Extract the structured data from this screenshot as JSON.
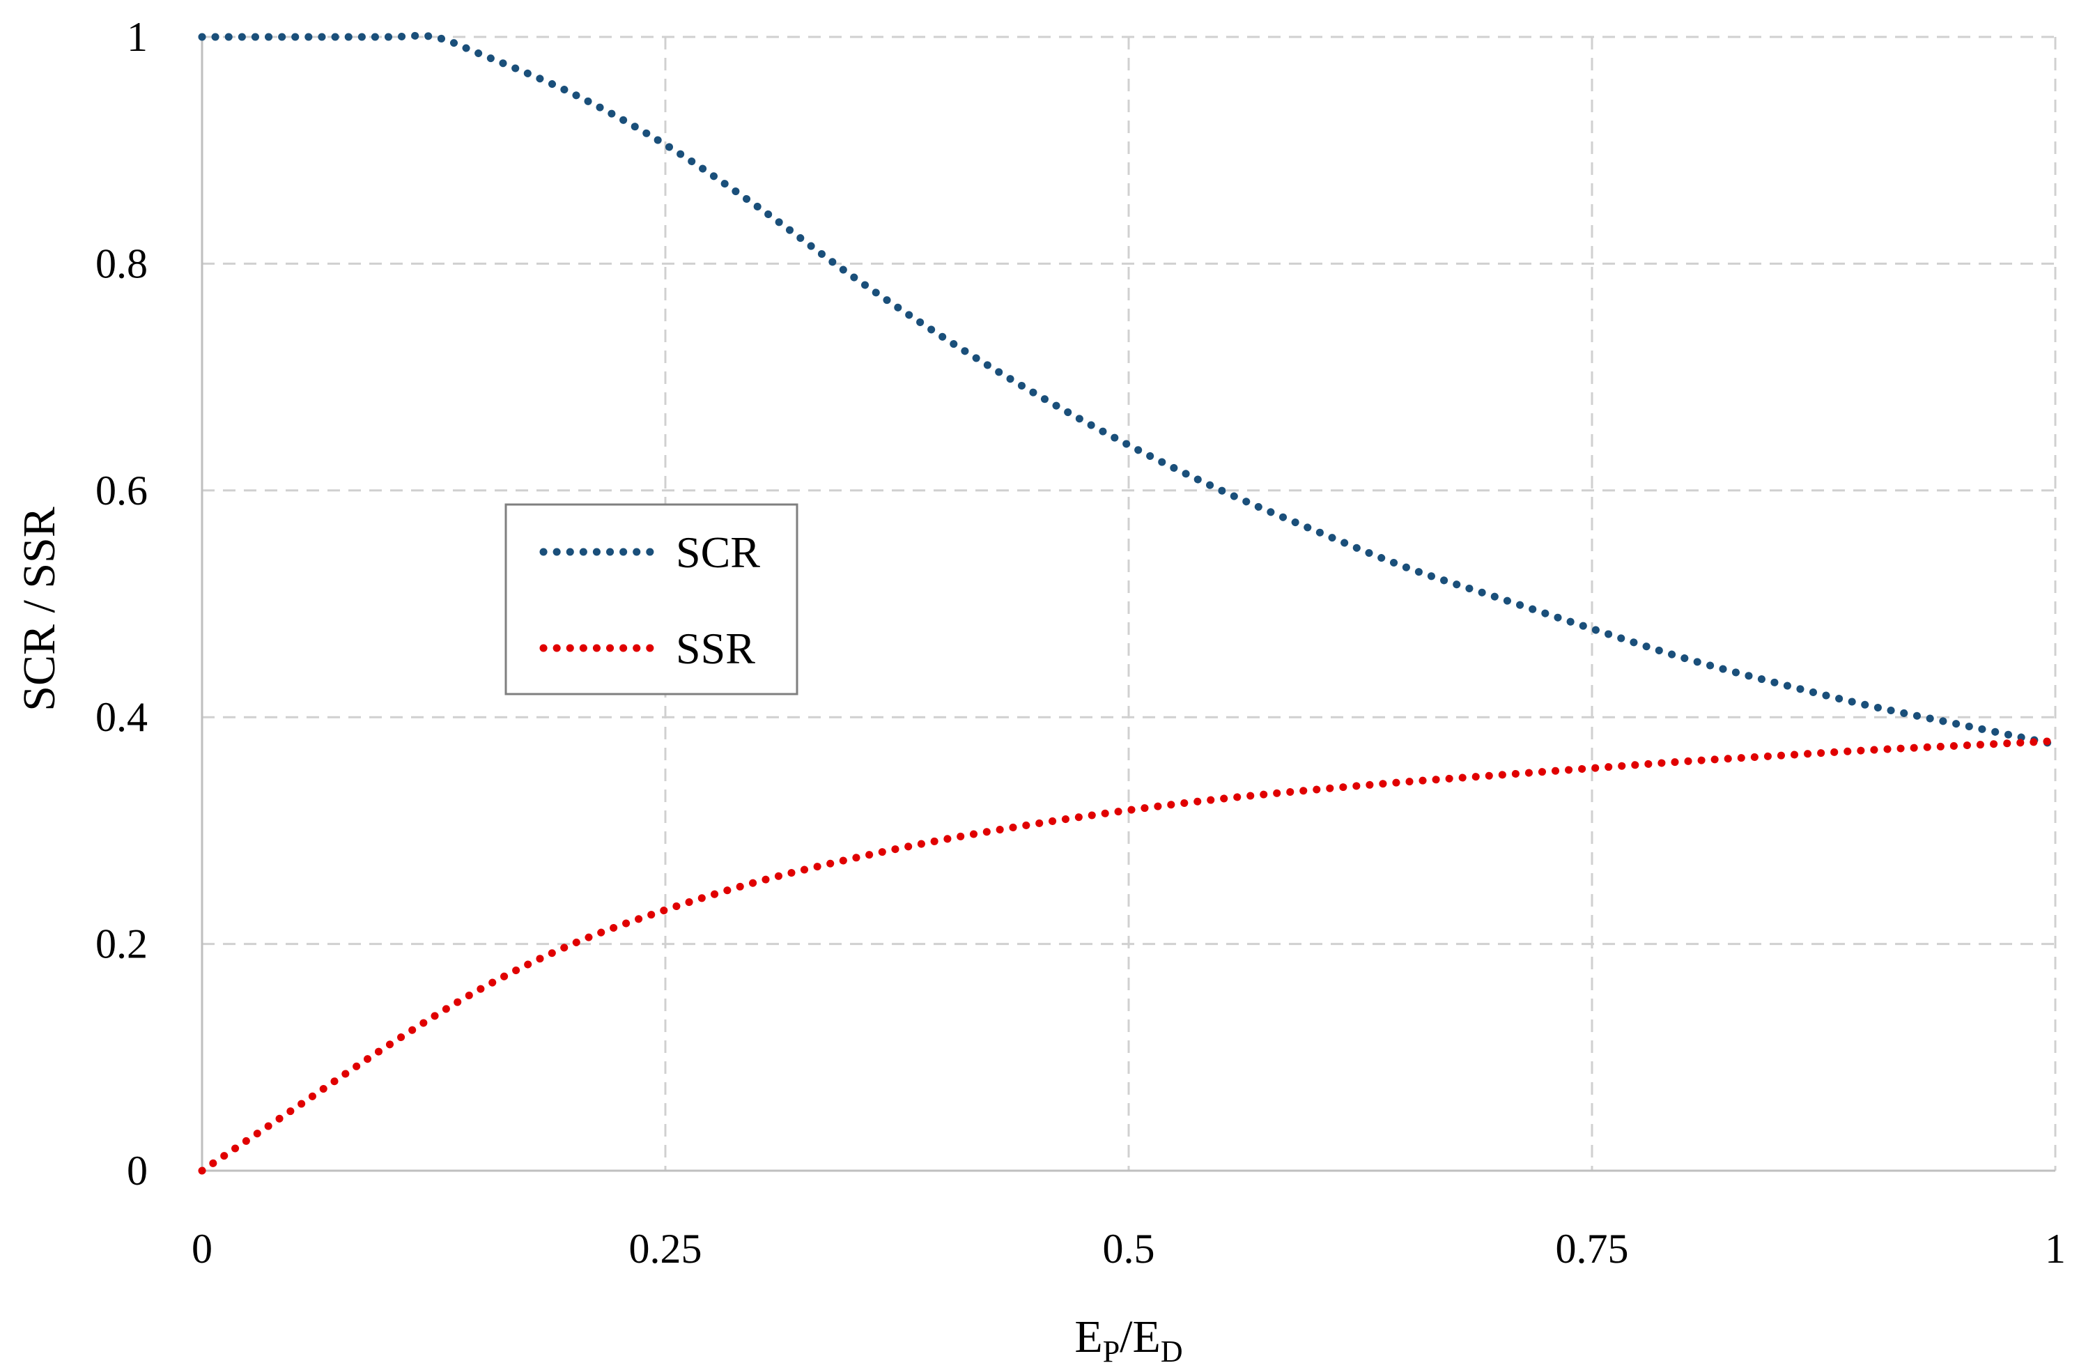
{
  "chart_data": {
    "type": "line",
    "title": "",
    "xlabel": "E_P/E_D",
    "xlabel_parts": {
      "base1": "E",
      "sub1": "P",
      "sep": "/",
      "base2": "E",
      "sub2": "D"
    },
    "ylabel": "SCR / SSR",
    "xlim": [
      0,
      1
    ],
    "ylim": [
      0,
      1
    ],
    "xticks": [
      0,
      0.25,
      0.5,
      0.75,
      1
    ],
    "xtick_labels": [
      "0",
      "0.25",
      "0.5",
      "0.75",
      "1"
    ],
    "yticks": [
      0,
      0.2,
      0.4,
      0.6,
      0.8,
      1
    ],
    "ytick_labels": [
      "0",
      "0.2",
      "0.4",
      "0.6",
      "0.8",
      "1"
    ],
    "grid": true,
    "legend_position": "center-left",
    "series": [
      {
        "name": "SCR",
        "color": "#1a4f7a",
        "style": "dotted",
        "x": [
          0,
          0.05,
          0.1,
          0.125,
          0.15,
          0.2,
          0.25,
          0.3,
          0.35,
          0.4,
          0.45,
          0.5,
          0.55,
          0.6,
          0.65,
          0.7,
          0.75,
          0.8,
          0.85,
          0.9,
          0.95,
          1
        ],
        "values": [
          1.0,
          1.0,
          1.0,
          1.0,
          0.985,
          0.95,
          0.905,
          0.85,
          0.79,
          0.735,
          0.685,
          0.64,
          0.6,
          0.565,
          0.532,
          0.505,
          0.478,
          0.452,
          0.43,
          0.41,
          0.393,
          0.376
        ]
      },
      {
        "name": "SSR",
        "color": "#e00000",
        "style": "dotted",
        "x": [
          0,
          0.05,
          0.1,
          0.15,
          0.2,
          0.25,
          0.3,
          0.35,
          0.4,
          0.45,
          0.5,
          0.55,
          0.6,
          0.65,
          0.7,
          0.75,
          0.8,
          0.85,
          0.9,
          0.95,
          1
        ],
        "values": [
          0.0,
          0.055,
          0.11,
          0.16,
          0.2,
          0.23,
          0.255,
          0.275,
          0.292,
          0.306,
          0.318,
          0.328,
          0.336,
          0.343,
          0.349,
          0.355,
          0.361,
          0.366,
          0.371,
          0.375,
          0.379
        ]
      }
    ]
  }
}
